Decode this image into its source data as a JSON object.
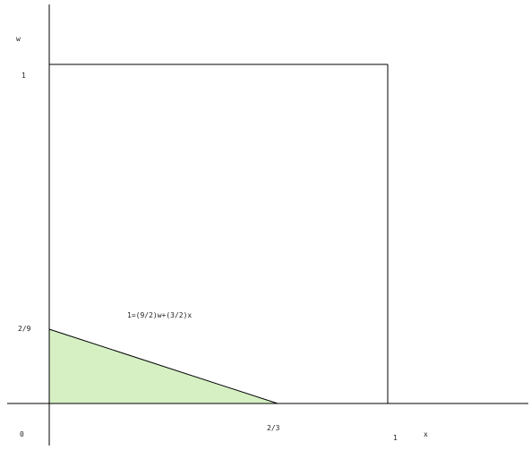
{
  "labels": {
    "w_axis": "w",
    "x_axis": "x",
    "one_w": "1",
    "one_x": "1",
    "two_ninths": "2/9",
    "two_thirds": "2/3",
    "origin": "0",
    "equation": "1=(9/2)w+(3/2)x"
  },
  "colors": {
    "axes": "#000000",
    "region_fill": "#d6f0c4",
    "background": "#ffffff"
  }
}
